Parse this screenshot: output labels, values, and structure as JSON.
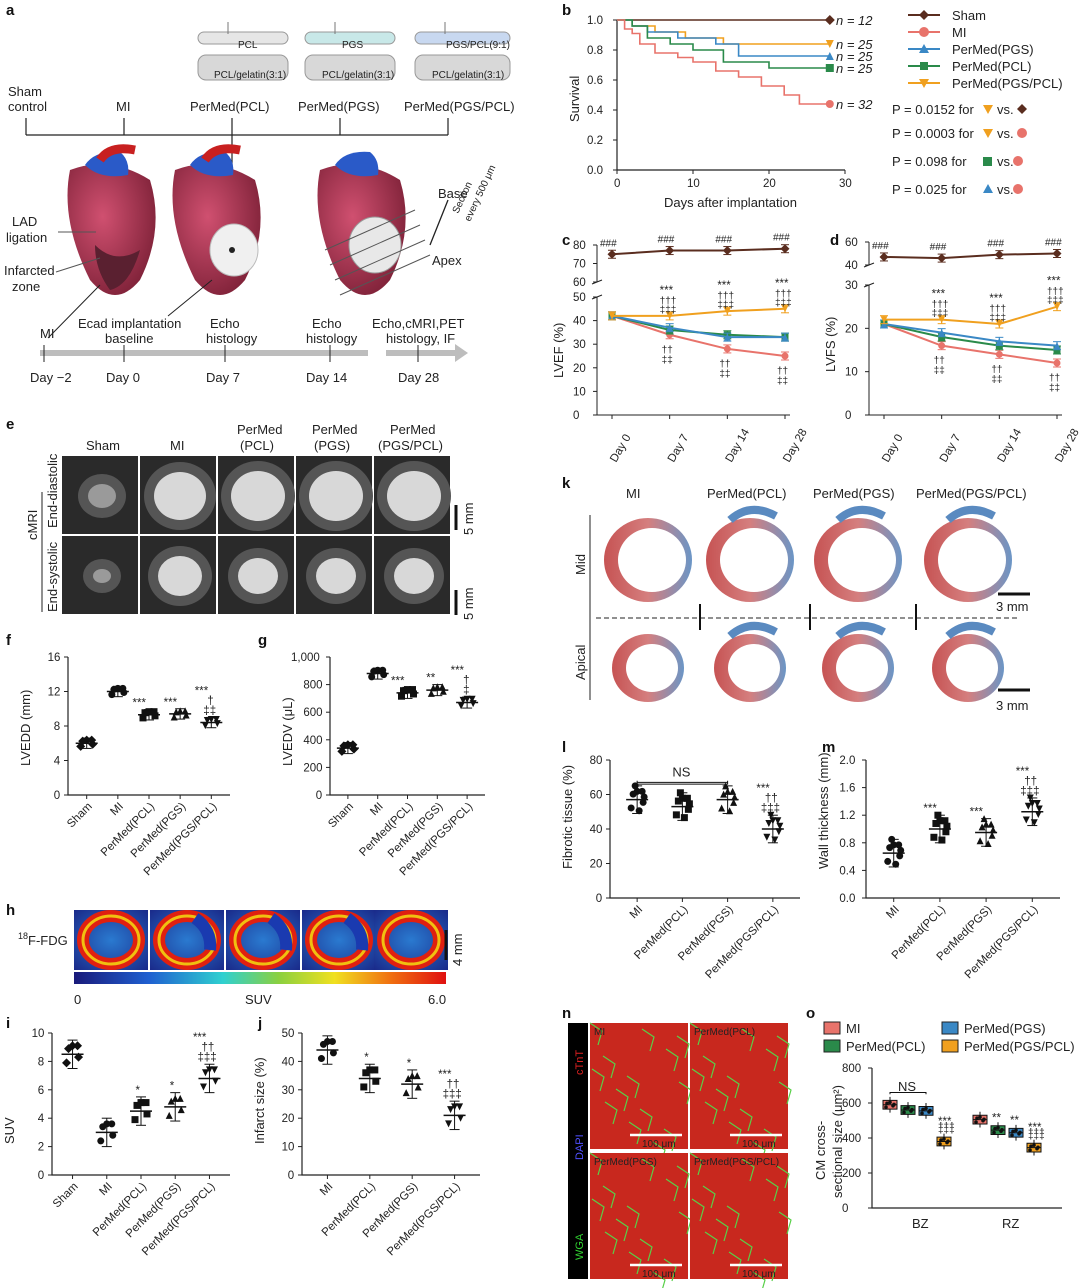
{
  "panels": {
    "a": "a",
    "b": "b",
    "c": "c",
    "d": "d",
    "e": "e",
    "f": "f",
    "g": "g",
    "h": "h",
    "i": "i",
    "j": "j",
    "k": "k",
    "l": "l",
    "m": "m",
    "n": "n",
    "o": "o"
  },
  "panel_a": {
    "patch_top": [
      "PCL",
      "PGS",
      "PGS/PCL(9:1)"
    ],
    "patch_bottom": [
      "PCL/gelatin(3:1)",
      "PCL/gelatin(3:1)",
      "PCL/gelatin(3:1)"
    ],
    "groups": [
      "Sham\ncontrol",
      "MI",
      "PerMed(PCL)",
      "PerMed(PGS)",
      "PerMed(PGS/PCL)"
    ],
    "sham_l1": "Sham",
    "sham_l2": "control",
    "heart_labels": {
      "lad1": "LAD",
      "lad2": "ligation",
      "inf1": "Infarcted",
      "inf2": "zone",
      "base": "Base",
      "apex": "Apex",
      "sec1": "Section",
      "sec2": "every 500 μm"
    },
    "timeline_events": {
      "mi": "MI",
      "ecad1": "Ecad implantation",
      "ecad2": "baseline",
      "echo7a": "Echo",
      "echo7b": "histology",
      "echo14a": "Echo",
      "echo14b": "histology",
      "d28a": "Echo,cMRI,PET",
      "d28b": "histology, IF"
    },
    "timeline_days": [
      "Day −2",
      "Day 0",
      "Day 7",
      "Day 14",
      "Day 28"
    ]
  },
  "colors": {
    "sham": "#5a2d1f",
    "mi": "#e8736b",
    "pcl": "#3a88c5",
    "pgs": "#2a8a4a",
    "pgspcl": "#f0a01f"
  },
  "panel_b": {
    "ylabel": "Survival",
    "xlabel": "Days after implantation",
    "legend": [
      "Sham",
      "MI",
      "PerMed(PGS)",
      "PerMed(PCL)",
      "PerMed(PGS/PCL)"
    ],
    "n_labels": [
      "n = 12",
      "n = 25",
      "n = 25",
      "n = 25",
      "n = 32"
    ],
    "pvals": [
      "P = 0.0152 for",
      "P = 0.0003 for",
      "P = 0.098 for",
      "P = 0.025 for"
    ],
    "vs": "vs."
  },
  "panel_c": {
    "ylabel": "LVEF (%)",
    "days": [
      "Day 0",
      "Day 7",
      "Day 14",
      "Day 28"
    ]
  },
  "panel_d": {
    "ylabel": "LVFS (%)",
    "days": [
      "Day 0",
      "Day 7",
      "Day 14",
      "Day 28"
    ]
  },
  "panel_e": {
    "cols": [
      "Sham",
      "MI",
      "PerMed\n(PCL)",
      "PerMed\n(PGS)",
      "PerMed\n(PGS/PCL)"
    ],
    "col_l1": [
      "Sham",
      "MI",
      "PerMed",
      "PerMed",
      "PerMed"
    ],
    "col_l2": [
      "",
      "",
      "(PCL)",
      "(PGS)",
      "(PGS/PCL)"
    ],
    "rows": [
      "End-diastolic",
      "End-systolic"
    ],
    "side": "cMRI",
    "scale": "5 mm"
  },
  "panel_f": {
    "ylabel": "LVEDD (mm)",
    "cats": [
      "Sham",
      "MI",
      "PerMed(PCL)",
      "PerMed(PGS)",
      "PerMed(PGS/PCL)"
    ]
  },
  "panel_g": {
    "ylabel": "LVEDV (μL)",
    "cats": [
      "Sham",
      "MI",
      "PerMed(PCL)",
      "PerMed(PGS)",
      "PerMed(PGS/PCL)"
    ]
  },
  "panel_h": {
    "label": "F-FDG",
    "iso": "18",
    "scale": "4 mm",
    "cbar_min": "0",
    "cbar_mid": "SUV",
    "cbar_max": "6.0"
  },
  "panel_i": {
    "ylabel": "SUV",
    "cats": [
      "Sham",
      "MI",
      "PerMed(PCL)",
      "PerMed(PGS)",
      "PerMed(PGS/PCL)"
    ]
  },
  "panel_j": {
    "ylabel": "Infarct size (%)",
    "cats": [
      "MI",
      "PerMed(PCL)",
      "PerMed(PGS)",
      "PerMed(PGS/PCL)"
    ]
  },
  "panel_k": {
    "cols": [
      "MI",
      "PerMed(PCL)",
      "PerMed(PGS)",
      "PerMed(PGS/PCL)"
    ],
    "rows": [
      "Mid",
      "Apical"
    ],
    "scale": "3 mm"
  },
  "panel_l": {
    "ylabel": "Fibrotic tissue (%)",
    "ns": "NS",
    "cats": [
      "MI",
      "PerMed(PCL)",
      "PerMed(PGS)",
      "PerMed(PGS/PCL)"
    ]
  },
  "panel_m": {
    "ylabel": "Wall thickness (mm)",
    "cats": [
      "MI",
      "PerMed(PCL)",
      "PerMed(PGS)",
      "PerMed(PGS/PCL)"
    ]
  },
  "panel_n": {
    "stains": [
      "cTnT",
      "DAPI",
      "WGA"
    ],
    "tiles": [
      "MI",
      "PerMed(PCL)",
      "PerMed(PGS)",
      "PerMed(PGS/PCL)"
    ],
    "scale": "100 μm"
  },
  "panel_o": {
    "legend": [
      "MI",
      "PerMed(PGS)",
      "PerMed(PCL)",
      "PerMed(PGS/PCL)"
    ],
    "ylabel1": "CM cross-",
    "ylabel2": "sectional size (μm²)",
    "zones": [
      "BZ",
      "RZ"
    ],
    "ns": "NS"
  },
  "sig": {
    "s3": "***",
    "s2": "**",
    "s1": "*",
    "h3": "###",
    "d1": "†",
    "d2": "††",
    "d3": "†††",
    "x1": "‡",
    "x2": "‡‡",
    "x3": "‡‡‡"
  },
  "chart_data": [
    {
      "panel": "b",
      "type": "line",
      "title": "",
      "xlabel": "Days after implantation",
      "ylabel": "Survival",
      "xlim": [
        0,
        30
      ],
      "ylim": [
        0,
        1.0
      ],
      "series": [
        {
          "name": "Sham",
          "x": [
            0,
            28
          ],
          "y": [
            1.0,
            1.0
          ]
        },
        {
          "name": "PerMed(PGS/PCL)",
          "x": [
            0,
            2,
            5,
            9,
            14,
            28
          ],
          "y": [
            1.0,
            0.96,
            0.92,
            0.88,
            0.84,
            0.84
          ]
        },
        {
          "name": "PerMed(PGS)",
          "x": [
            0,
            2,
            4,
            8,
            13,
            16,
            28
          ],
          "y": [
            1.0,
            0.96,
            0.92,
            0.88,
            0.84,
            0.76,
            0.76
          ]
        },
        {
          "name": "PerMed(PCL)",
          "x": [
            0,
            2,
            4,
            7,
            10,
            14,
            20,
            28
          ],
          "y": [
            1.0,
            0.96,
            0.88,
            0.84,
            0.8,
            0.72,
            0.68,
            0.68
          ]
        },
        {
          "name": "MI",
          "x": [
            0,
            1,
            2,
            3,
            5,
            8,
            10,
            13,
            16,
            19,
            22,
            24,
            28
          ],
          "y": [
            1.0,
            0.94,
            0.91,
            0.84,
            0.78,
            0.75,
            0.72,
            0.66,
            0.62,
            0.56,
            0.5,
            0.44,
            0.44
          ]
        }
      ]
    },
    {
      "panel": "c",
      "type": "line",
      "ylabel": "LVEF (%)",
      "categories": [
        "Day 0",
        "Day 7",
        "Day 14",
        "Day 28"
      ],
      "ylim": [
        0,
        85
      ],
      "series": [
        {
          "name": "Sham",
          "values": [
            75,
            77,
            77,
            78
          ]
        },
        {
          "name": "MI",
          "values": [
            42,
            34,
            28,
            25
          ]
        },
        {
          "name": "PerMed(PCL)",
          "values": [
            42,
            36,
            34,
            33
          ]
        },
        {
          "name": "PerMed(PGS)",
          "values": [
            42,
            37,
            33,
            33
          ]
        },
        {
          "name": "PerMed(PGS/PCL)",
          "values": [
            42,
            42,
            44,
            45
          ]
        }
      ]
    },
    {
      "panel": "d",
      "type": "line",
      "ylabel": "LVFS (%)",
      "categories": [
        "Day 0",
        "Day 7",
        "Day 14",
        "Day 28"
      ],
      "ylim": [
        0,
        60
      ],
      "series": [
        {
          "name": "Sham",
          "values": [
            47,
            46,
            49,
            50
          ]
        },
        {
          "name": "MI",
          "values": [
            21,
            16,
            14,
            12
          ]
        },
        {
          "name": "PerMed(PCL)",
          "values": [
            21,
            18,
            16,
            15
          ]
        },
        {
          "name": "PerMed(PGS)",
          "values": [
            21,
            19,
            17,
            16
          ]
        },
        {
          "name": "PerMed(PGS/PCL)",
          "values": [
            22,
            22,
            21,
            25
          ]
        }
      ]
    },
    {
      "panel": "f",
      "type": "scatter",
      "ylabel": "LVEDD (mm)",
      "ylim": [
        0,
        16
      ],
      "categories": [
        "Sham",
        "MI",
        "PerMed(PCL)",
        "PerMed(PGS)",
        "PerMed(PGS/PCL)"
      ],
      "values": [
        6.0,
        12.0,
        9.3,
        9.4,
        8.4
      ]
    },
    {
      "panel": "g",
      "type": "scatter",
      "ylabel": "LVEDV (μL)",
      "ylim": [
        0,
        1000
      ],
      "categories": [
        "Sham",
        "MI",
        "PerMed(PCL)",
        "PerMed(PGS)",
        "PerMed(PGS/PCL)"
      ],
      "values": [
        340,
        880,
        740,
        760,
        670
      ]
    },
    {
      "panel": "i",
      "type": "scatter",
      "ylabel": "SUV",
      "ylim": [
        0,
        10
      ],
      "categories": [
        "Sham",
        "MI",
        "PerMed(PCL)",
        "PerMed(PGS)",
        "PerMed(PGS/PCL)"
      ],
      "values": [
        8.5,
        3.0,
        4.5,
        4.8,
        6.8
      ]
    },
    {
      "panel": "j",
      "type": "scatter",
      "ylabel": "Infarct size (%)",
      "ylim": [
        0,
        50
      ],
      "categories": [
        "MI",
        "PerMed(PCL)",
        "PerMed(PGS)",
        "PerMed(PGS/PCL)"
      ],
      "values": [
        44,
        34,
        32,
        21
      ]
    },
    {
      "panel": "l",
      "type": "scatter",
      "ylabel": "Fibrotic tissue (%)",
      "ylim": [
        0,
        80
      ],
      "categories": [
        "MI",
        "PerMed(PCL)",
        "PerMed(PGS)",
        "PerMed(PGS/PCL)"
      ],
      "values": [
        57,
        53,
        57,
        40
      ]
    },
    {
      "panel": "m",
      "type": "scatter",
      "ylabel": "Wall thickness (mm)",
      "ylim": [
        0,
        2.0
      ],
      "categories": [
        "MI",
        "PerMed(PCL)",
        "PerMed(PGS)",
        "PerMed(PGS/PCL)"
      ],
      "values": [
        0.65,
        1.0,
        0.95,
        1.25
      ]
    },
    {
      "panel": "o",
      "type": "bar",
      "ylabel": "CM cross-sectional size (μm²)",
      "ylim": [
        0,
        800
      ],
      "categories": [
        "BZ",
        "RZ"
      ],
      "series": [
        {
          "name": "MI",
          "values": [
            590,
            505
          ]
        },
        {
          "name": "PerMed(PCL)",
          "values": [
            560,
            445
          ]
        },
        {
          "name": "PerMed(PGS)",
          "values": [
            555,
            430
          ]
        },
        {
          "name": "PerMed(PGS/PCL)",
          "values": [
            380,
            345
          ]
        }
      ]
    }
  ]
}
